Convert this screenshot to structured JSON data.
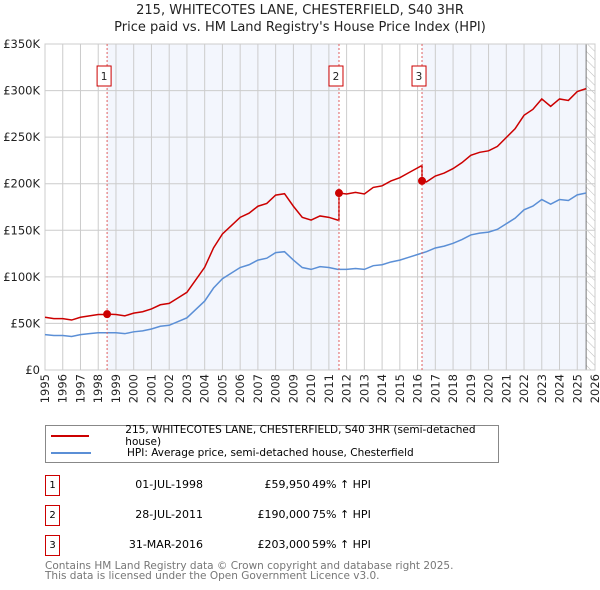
{
  "header": {
    "title_line1": "215, WHITECOTES LANE, CHESTERFIELD, S40 3HR",
    "title_line2": "Price paid vs. HM Land Registry's House Price Index (HPI)"
  },
  "chart_data": {
    "type": "line",
    "title": "Price paid vs. HM Land Registry's House Price Index (HPI)",
    "xlim": [
      1995,
      2026
    ],
    "ylim": [
      0,
      350000
    ],
    "x_ticks": [
      "1995",
      "1996",
      "1997",
      "1998",
      "1999",
      "2000",
      "2001",
      "2002",
      "2003",
      "2004",
      "2005",
      "2006",
      "2007",
      "2008",
      "2009",
      "2010",
      "2011",
      "2012",
      "2013",
      "2014",
      "2015",
      "2016",
      "2017",
      "2018",
      "2019",
      "2020",
      "2021",
      "2022",
      "2023",
      "2024",
      "2025",
      "2026"
    ],
    "y_ticks": [
      {
        "v": 0,
        "label": "£0"
      },
      {
        "v": 50000,
        "label": "£50K"
      },
      {
        "v": 100000,
        "label": "£100K"
      },
      {
        "v": 150000,
        "label": "£150K"
      },
      {
        "v": 200000,
        "label": "£200K"
      },
      {
        "v": 250000,
        "label": "£250K"
      },
      {
        "v": 300000,
        "label": "£300K"
      },
      {
        "v": 350000,
        "label": "£350K"
      }
    ],
    "grid": true,
    "data_end_year": 2025.5,
    "hpi_series": {
      "name": "HPI: Average price, semi-detached house, Chesterfield",
      "color": "#5b8fd6",
      "start_year": 1995,
      "step_years": 0.5,
      "values_k": [
        38,
        37,
        37,
        36,
        38,
        39,
        40,
        40,
        40,
        39,
        41,
        42,
        44,
        47,
        48,
        52,
        56,
        65,
        74,
        88,
        98,
        104,
        110,
        113,
        118,
        120,
        126,
        127,
        118,
        110,
        108,
        111,
        110,
        108,
        108,
        109,
        108,
        112,
        113,
        116,
        118,
        121,
        124,
        127,
        131,
        133,
        136,
        140,
        145,
        147,
        148,
        151,
        157,
        163,
        172,
        176,
        183,
        178,
        183,
        182,
        188,
        190
      ]
    },
    "property_series": {
      "name": "215, WHITECOTES LANE, CHESTERFIELD, S40 3HR (semi-detached house)",
      "color": "#cc0000"
    },
    "sales": [
      {
        "num": "1",
        "year": 1998.5,
        "date": "01-JUL-1998",
        "price": 59950,
        "price_label": "£59,950",
        "hpi_pct": 0.49,
        "hpi_label": "49% ↑ HPI"
      },
      {
        "num": "2",
        "year": 2011.57,
        "date": "28-JUL-2011",
        "price": 190000,
        "price_label": "£190,000",
        "hpi_pct": 0.75,
        "hpi_label": "75% ↑ HPI"
      },
      {
        "num": "3",
        "year": 2016.25,
        "date": "31-MAR-2016",
        "price": 203000,
        "price_label": "£203,000",
        "hpi_pct": 0.59,
        "hpi_label": "59% ↑ HPI"
      }
    ]
  },
  "footer": {
    "line1": "Contains HM Land Registry data © Crown copyright and database right 2025.",
    "line2": "This data is licensed under the Open Government Licence v3.0."
  }
}
